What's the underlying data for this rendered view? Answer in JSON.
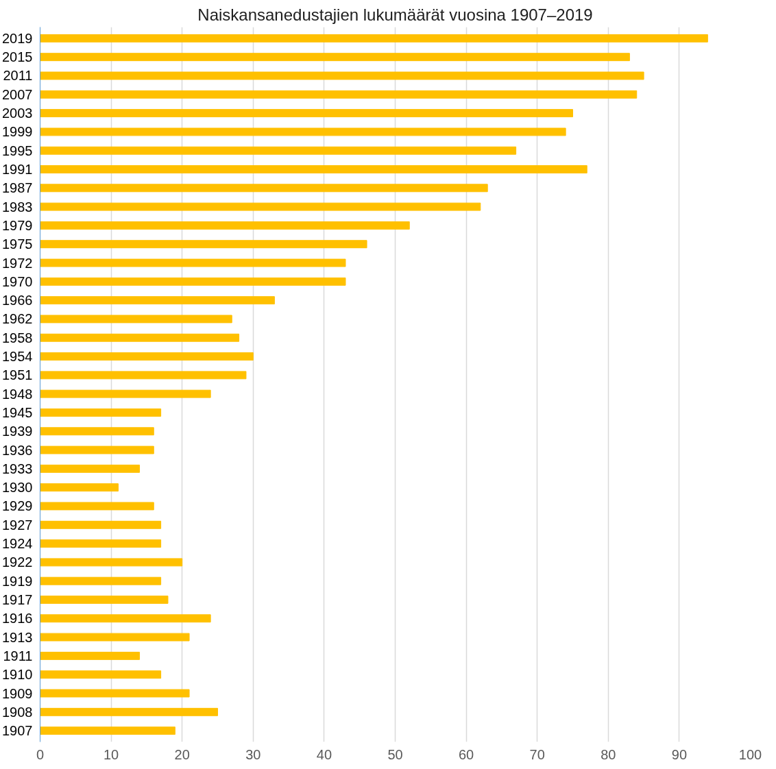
{
  "chart_data": {
    "type": "bar",
    "orientation": "horizontal",
    "title": "Naiskansanedustajien lukumäärät vuosina 1907–2019",
    "categories": [
      "2019",
      "2015",
      "2011",
      "2007",
      "2003",
      "1999",
      "1995",
      "1991",
      "1987",
      "1983",
      "1979",
      "1975",
      "1972",
      "1970",
      "1966",
      "1962",
      "1958",
      "1954",
      "1951",
      "1948",
      "1945",
      "1939",
      "1936",
      "1933",
      "1930",
      "1929",
      "1927",
      "1924",
      "1922",
      "1919",
      "1917",
      "1916",
      "1913",
      "1911",
      "1910",
      "1909",
      "1908",
      "1907"
    ],
    "values": [
      94,
      83,
      85,
      84,
      75,
      74,
      67,
      77,
      63,
      62,
      52,
      46,
      43,
      43,
      33,
      27,
      28,
      30,
      29,
      24,
      17,
      16,
      16,
      14,
      11,
      16,
      17,
      17,
      20,
      17,
      18,
      24,
      21,
      14,
      17,
      21,
      25,
      19
    ],
    "color": "#ffc000",
    "xlim": [
      0,
      100
    ],
    "xticks": [
      0,
      10,
      20,
      30,
      40,
      50,
      60,
      70,
      80,
      90,
      100
    ],
    "grid": "x"
  }
}
